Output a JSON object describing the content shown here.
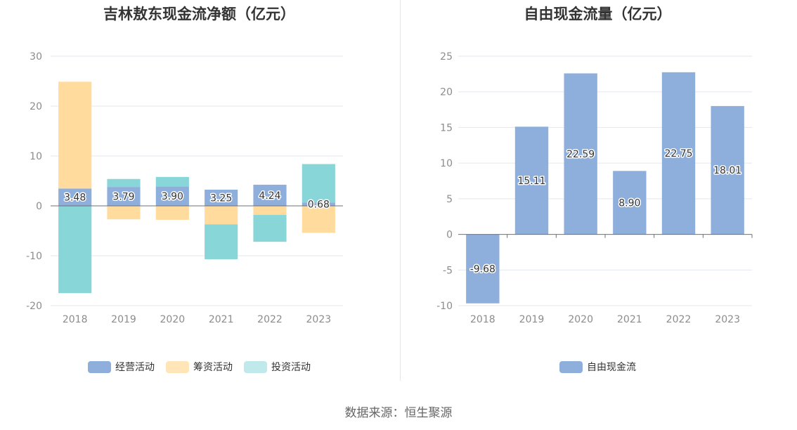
{
  "colors": {
    "operating": "#8eaedc",
    "financing": "#ffdb9d",
    "investing": "#88d6d8",
    "fcf": "#8eaedc"
  },
  "source": "数据来源：恒生聚源",
  "chart_data": [
    {
      "type": "bar",
      "stacked": true,
      "title": "吉林敖东现金流净额（亿元）",
      "categories": [
        "2018",
        "2019",
        "2020",
        "2021",
        "2022",
        "2023"
      ],
      "ylim": [
        -20,
        30
      ],
      "yticks": [
        "-20",
        "-10",
        "0",
        "10",
        "20",
        "30"
      ],
      "grid": true,
      "legend_position": "bottom",
      "series": [
        {
          "name": "经营活动",
          "values": [
            3.48,
            3.79,
            3.9,
            3.25,
            4.24,
            0.68
          ],
          "labels": [
            "3.48",
            "3.79",
            "3.90",
            "3.25",
            "4.24",
            "0.68"
          ]
        },
        {
          "name": "筹资活动",
          "values": [
            21.4,
            -2.7,
            -2.8,
            -3.7,
            -1.8,
            -5.4
          ]
        },
        {
          "name": "投资活动",
          "values": [
            -17.5,
            1.6,
            1.9,
            -7.0,
            -5.4,
            7.7
          ]
        }
      ]
    },
    {
      "type": "bar",
      "title": "自由现金流量（亿元）",
      "categories": [
        "2018",
        "2019",
        "2020",
        "2021",
        "2022",
        "2023"
      ],
      "ylim": [
        -10,
        25
      ],
      "yticks": [
        "-10",
        "-5",
        "0",
        "5",
        "10",
        "15",
        "20",
        "25"
      ],
      "grid": true,
      "legend_position": "bottom",
      "series": [
        {
          "name": "自由现金流",
          "values": [
            -9.68,
            15.11,
            22.59,
            8.9,
            22.75,
            18.01
          ],
          "labels": [
            "-9.68",
            "15.11",
            "22.59",
            "8.90",
            "22.75",
            "18.01"
          ]
        }
      ]
    }
  ]
}
